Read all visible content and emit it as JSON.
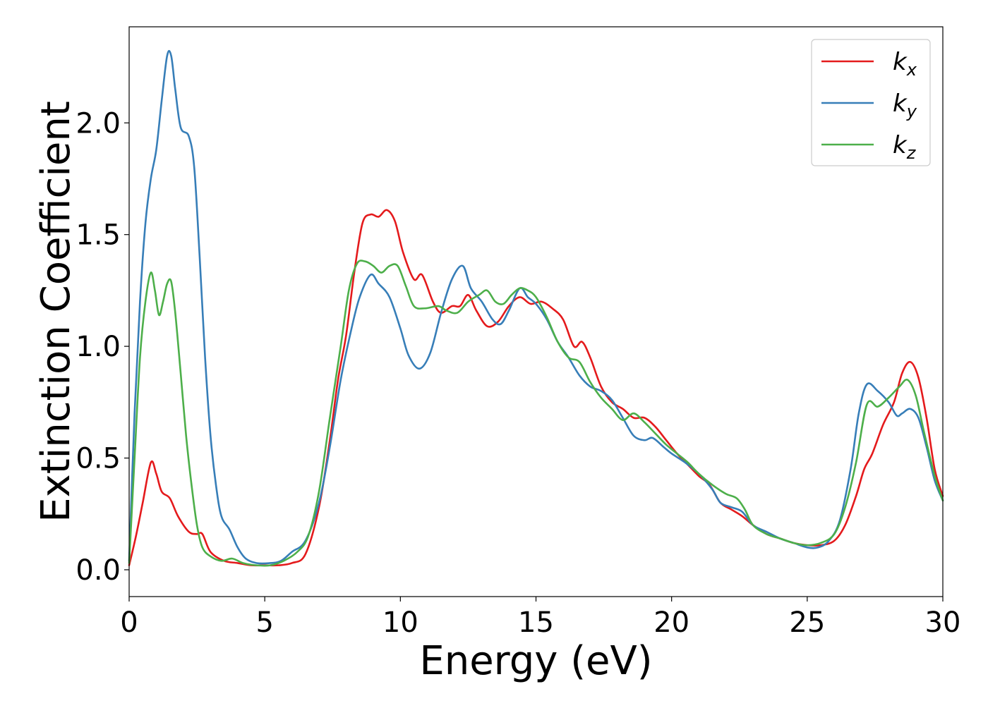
{
  "chart_data": {
    "type": "line",
    "xlabel": "Energy (eV)",
    "ylabel": "Extinction Coefficient",
    "xlim": [
      0,
      30
    ],
    "ylim": [
      -0.12,
      2.43
    ],
    "x_ticks": [
      0,
      5,
      10,
      15,
      20,
      25,
      30
    ],
    "y_ticks": [
      0.0,
      0.5,
      1.0,
      1.5,
      2.0
    ],
    "x_tick_labels": [
      "0",
      "5",
      "10",
      "15",
      "20",
      "25",
      "30"
    ],
    "y_tick_labels": [
      "0.0",
      "0.5",
      "1.0",
      "1.5",
      "2.0"
    ],
    "grid": false,
    "legend_position": "top-right",
    "series": [
      {
        "name": "k_x",
        "legend_main": "k",
        "legend_sub": "x",
        "color": "#e41a1c",
        "points": [
          [
            0,
            0.02
          ],
          [
            0.25,
            0.15
          ],
          [
            0.5,
            0.3
          ],
          [
            0.8,
            0.48
          ],
          [
            1.0,
            0.43
          ],
          [
            1.2,
            0.35
          ],
          [
            1.5,
            0.32
          ],
          [
            1.8,
            0.24
          ],
          [
            2.2,
            0.17
          ],
          [
            2.5,
            0.16
          ],
          [
            2.7,
            0.16
          ],
          [
            3.0,
            0.08
          ],
          [
            3.5,
            0.04
          ],
          [
            4.0,
            0.03
          ],
          [
            4.5,
            0.02
          ],
          [
            5.0,
            0.02
          ],
          [
            5.5,
            0.02
          ],
          [
            6.0,
            0.03
          ],
          [
            6.5,
            0.07
          ],
          [
            7.0,
            0.28
          ],
          [
            7.4,
            0.58
          ],
          [
            7.7,
            0.85
          ],
          [
            8.0,
            1.05
          ],
          [
            8.3,
            1.33
          ],
          [
            8.6,
            1.55
          ],
          [
            8.9,
            1.59
          ],
          [
            9.2,
            1.58
          ],
          [
            9.5,
            1.61
          ],
          [
            9.8,
            1.56
          ],
          [
            10.1,
            1.42
          ],
          [
            10.5,
            1.3
          ],
          [
            10.8,
            1.32
          ],
          [
            11.2,
            1.2
          ],
          [
            11.5,
            1.15
          ],
          [
            11.9,
            1.18
          ],
          [
            12.2,
            1.18
          ],
          [
            12.5,
            1.23
          ],
          [
            12.8,
            1.16
          ],
          [
            13.2,
            1.09
          ],
          [
            13.6,
            1.11
          ],
          [
            14.0,
            1.18
          ],
          [
            14.4,
            1.22
          ],
          [
            14.8,
            1.19
          ],
          [
            15.2,
            1.2
          ],
          [
            15.6,
            1.17
          ],
          [
            16.0,
            1.12
          ],
          [
            16.4,
            1.0
          ],
          [
            16.7,
            1.02
          ],
          [
            17.0,
            0.95
          ],
          [
            17.4,
            0.82
          ],
          [
            17.8,
            0.75
          ],
          [
            18.2,
            0.72
          ],
          [
            18.6,
            0.68
          ],
          [
            19.0,
            0.68
          ],
          [
            19.4,
            0.64
          ],
          [
            19.8,
            0.58
          ],
          [
            20.2,
            0.52
          ],
          [
            20.6,
            0.47
          ],
          [
            21.0,
            0.42
          ],
          [
            21.4,
            0.38
          ],
          [
            21.8,
            0.3
          ],
          [
            22.2,
            0.27
          ],
          [
            22.6,
            0.24
          ],
          [
            23.0,
            0.2
          ],
          [
            23.5,
            0.16
          ],
          [
            24.0,
            0.14
          ],
          [
            24.5,
            0.12
          ],
          [
            25.0,
            0.11
          ],
          [
            25.5,
            0.11
          ],
          [
            26.0,
            0.13
          ],
          [
            26.4,
            0.2
          ],
          [
            26.8,
            0.33
          ],
          [
            27.1,
            0.45
          ],
          [
            27.4,
            0.52
          ],
          [
            27.8,
            0.65
          ],
          [
            28.2,
            0.75
          ],
          [
            28.5,
            0.88
          ],
          [
            28.8,
            0.93
          ],
          [
            29.1,
            0.86
          ],
          [
            29.4,
            0.68
          ],
          [
            29.7,
            0.45
          ],
          [
            30.0,
            0.33
          ]
        ]
      },
      {
        "name": "k_y",
        "legend_main": "k",
        "legend_sub": "y",
        "color": "#377eb8",
        "points": [
          [
            0,
            0.04
          ],
          [
            0.2,
            0.7
          ],
          [
            0.4,
            1.2
          ],
          [
            0.6,
            1.55
          ],
          [
            0.8,
            1.75
          ],
          [
            1.0,
            1.88
          ],
          [
            1.2,
            2.1
          ],
          [
            1.4,
            2.3
          ],
          [
            1.55,
            2.3
          ],
          [
            1.7,
            2.15
          ],
          [
            1.9,
            1.98
          ],
          [
            2.2,
            1.94
          ],
          [
            2.4,
            1.8
          ],
          [
            2.6,
            1.4
          ],
          [
            2.8,
            0.95
          ],
          [
            3.0,
            0.6
          ],
          [
            3.2,
            0.38
          ],
          [
            3.4,
            0.24
          ],
          [
            3.7,
            0.18
          ],
          [
            4.0,
            0.1
          ],
          [
            4.3,
            0.05
          ],
          [
            4.7,
            0.03
          ],
          [
            5.2,
            0.03
          ],
          [
            5.6,
            0.04
          ],
          [
            6.0,
            0.08
          ],
          [
            6.5,
            0.13
          ],
          [
            7.0,
            0.3
          ],
          [
            7.4,
            0.55
          ],
          [
            7.8,
            0.85
          ],
          [
            8.2,
            1.08
          ],
          [
            8.5,
            1.22
          ],
          [
            8.9,
            1.32
          ],
          [
            9.2,
            1.28
          ],
          [
            9.6,
            1.22
          ],
          [
            10.0,
            1.08
          ],
          [
            10.3,
            0.96
          ],
          [
            10.7,
            0.9
          ],
          [
            11.1,
            0.97
          ],
          [
            11.5,
            1.15
          ],
          [
            11.9,
            1.3
          ],
          [
            12.3,
            1.36
          ],
          [
            12.6,
            1.26
          ],
          [
            13.0,
            1.2
          ],
          [
            13.4,
            1.12
          ],
          [
            13.7,
            1.1
          ],
          [
            14.0,
            1.16
          ],
          [
            14.4,
            1.26
          ],
          [
            14.7,
            1.22
          ],
          [
            15.0,
            1.19
          ],
          [
            15.4,
            1.12
          ],
          [
            15.8,
            1.02
          ],
          [
            16.2,
            0.95
          ],
          [
            16.6,
            0.87
          ],
          [
            17.0,
            0.82
          ],
          [
            17.4,
            0.8
          ],
          [
            17.8,
            0.76
          ],
          [
            18.2,
            0.68
          ],
          [
            18.6,
            0.6
          ],
          [
            19.0,
            0.58
          ],
          [
            19.3,
            0.59
          ],
          [
            19.7,
            0.55
          ],
          [
            20.0,
            0.52
          ],
          [
            20.5,
            0.48
          ],
          [
            21.0,
            0.43
          ],
          [
            21.5,
            0.36
          ],
          [
            21.8,
            0.3
          ],
          [
            22.2,
            0.28
          ],
          [
            22.6,
            0.26
          ],
          [
            23.0,
            0.2
          ],
          [
            23.5,
            0.17
          ],
          [
            24.0,
            0.14
          ],
          [
            24.5,
            0.12
          ],
          [
            25.0,
            0.1
          ],
          [
            25.4,
            0.1
          ],
          [
            25.8,
            0.13
          ],
          [
            26.2,
            0.22
          ],
          [
            26.6,
            0.45
          ],
          [
            26.9,
            0.7
          ],
          [
            27.2,
            0.83
          ],
          [
            27.6,
            0.8
          ],
          [
            28.0,
            0.75
          ],
          [
            28.3,
            0.69
          ],
          [
            28.5,
            0.7
          ],
          [
            28.8,
            0.72
          ],
          [
            29.1,
            0.68
          ],
          [
            29.4,
            0.55
          ],
          [
            29.7,
            0.4
          ],
          [
            30.0,
            0.31
          ]
        ]
      },
      {
        "name": "k_z",
        "legend_main": "k",
        "legend_sub": "z",
        "color": "#4daf4a",
        "points": [
          [
            0,
            0.03
          ],
          [
            0.2,
            0.5
          ],
          [
            0.4,
            0.95
          ],
          [
            0.6,
            1.2
          ],
          [
            0.8,
            1.33
          ],
          [
            0.95,
            1.25
          ],
          [
            1.1,
            1.14
          ],
          [
            1.25,
            1.2
          ],
          [
            1.4,
            1.28
          ],
          [
            1.55,
            1.29
          ],
          [
            1.7,
            1.15
          ],
          [
            1.9,
            0.88
          ],
          [
            2.1,
            0.6
          ],
          [
            2.3,
            0.38
          ],
          [
            2.5,
            0.2
          ],
          [
            2.7,
            0.1
          ],
          [
            3.0,
            0.06
          ],
          [
            3.4,
            0.04
          ],
          [
            3.8,
            0.05
          ],
          [
            4.2,
            0.03
          ],
          [
            4.7,
            0.02
          ],
          [
            5.2,
            0.02
          ],
          [
            5.7,
            0.04
          ],
          [
            6.2,
            0.08
          ],
          [
            6.6,
            0.15
          ],
          [
            7.0,
            0.35
          ],
          [
            7.4,
            0.68
          ],
          [
            7.8,
            1.0
          ],
          [
            8.1,
            1.25
          ],
          [
            8.4,
            1.37
          ],
          [
            8.7,
            1.38
          ],
          [
            9.0,
            1.36
          ],
          [
            9.3,
            1.33
          ],
          [
            9.6,
            1.36
          ],
          [
            9.9,
            1.36
          ],
          [
            10.2,
            1.27
          ],
          [
            10.5,
            1.18
          ],
          [
            10.9,
            1.17
          ],
          [
            11.4,
            1.18
          ],
          [
            11.7,
            1.16
          ],
          [
            12.1,
            1.15
          ],
          [
            12.5,
            1.2
          ],
          [
            12.9,
            1.23
          ],
          [
            13.2,
            1.25
          ],
          [
            13.5,
            1.2
          ],
          [
            13.8,
            1.19
          ],
          [
            14.1,
            1.23
          ],
          [
            14.4,
            1.26
          ],
          [
            14.7,
            1.25
          ],
          [
            15.0,
            1.22
          ],
          [
            15.4,
            1.13
          ],
          [
            15.8,
            1.02
          ],
          [
            16.2,
            0.95
          ],
          [
            16.6,
            0.93
          ],
          [
            17.0,
            0.84
          ],
          [
            17.4,
            0.77
          ],
          [
            17.8,
            0.72
          ],
          [
            18.2,
            0.67
          ],
          [
            18.6,
            0.7
          ],
          [
            19.0,
            0.66
          ],
          [
            19.4,
            0.61
          ],
          [
            19.8,
            0.56
          ],
          [
            20.2,
            0.52
          ],
          [
            20.6,
            0.48
          ],
          [
            21.0,
            0.43
          ],
          [
            21.5,
            0.38
          ],
          [
            22.0,
            0.34
          ],
          [
            22.4,
            0.32
          ],
          [
            22.7,
            0.27
          ],
          [
            23.0,
            0.2
          ],
          [
            23.5,
            0.16
          ],
          [
            24.0,
            0.14
          ],
          [
            24.5,
            0.12
          ],
          [
            25.0,
            0.11
          ],
          [
            25.5,
            0.12
          ],
          [
            26.0,
            0.16
          ],
          [
            26.4,
            0.28
          ],
          [
            26.8,
            0.48
          ],
          [
            27.2,
            0.74
          ],
          [
            27.6,
            0.73
          ],
          [
            28.0,
            0.77
          ],
          [
            28.4,
            0.82
          ],
          [
            28.7,
            0.85
          ],
          [
            29.0,
            0.78
          ],
          [
            29.3,
            0.62
          ],
          [
            29.7,
            0.42
          ],
          [
            30.0,
            0.31
          ]
        ]
      }
    ]
  }
}
